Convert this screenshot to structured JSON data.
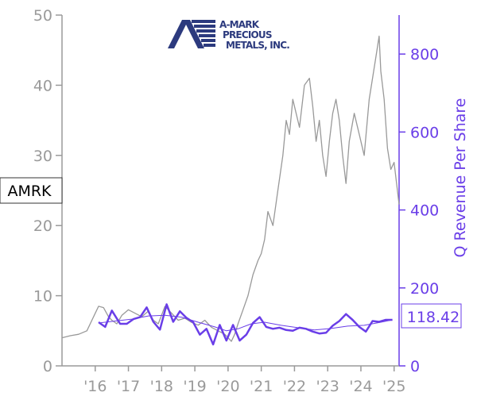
{
  "logo": {
    "line1": "A-MARK",
    "line2": "PRECIOUS",
    "line3": "METALS, INC."
  },
  "ticker_label": "AMRK",
  "last_revenue_label": "118.42",
  "colors": {
    "price": "#999999",
    "revenue": "#6a3ee8",
    "revenue_trend": "#6a3ee8",
    "left_axis": "#9a9a9a",
    "logo_blue": "#2c3a7e"
  },
  "chart_data": {
    "type": "line",
    "left_axis": {
      "ylim": [
        0,
        50
      ],
      "ticks": [
        0,
        10,
        20,
        30,
        40,
        50
      ]
    },
    "right_axis": {
      "label": "Q Revenue Per Share",
      "ylim": [
        0,
        900
      ],
      "ticks": [
        0,
        200,
        400,
        600,
        800
      ]
    },
    "x_axis": {
      "xlim": [
        2015.0,
        2025.15
      ],
      "tick_positions": [
        2016,
        2017,
        2018,
        2019,
        2020,
        2021,
        2022,
        2023,
        2024,
        2025
      ],
      "tick_labels": [
        "'16",
        "'17",
        "'18",
        "'19",
        "'20",
        "'21",
        "'22",
        "'23",
        "'24",
        "'25"
      ]
    },
    "series": [
      {
        "axis": "left",
        "x": [
          2015.0,
          2015.25,
          2015.5,
          2015.75,
          2015.9,
          2016.0,
          2016.1,
          2016.25,
          2016.4,
          2016.5,
          2016.65,
          2016.8,
          2017.0,
          2017.2,
          2017.4,
          2017.6,
          2017.75,
          2017.9,
          2018.1,
          2018.3,
          2018.5,
          2018.7,
          2018.9,
          2019.1,
          2019.3,
          2019.5,
          2019.7,
          2019.9,
          2020.0,
          2020.1,
          2020.2,
          2020.3,
          2020.45,
          2020.6,
          2020.75,
          2020.9,
          2021.0,
          2021.1,
          2021.2,
          2021.35,
          2021.5,
          2021.65,
          2021.75,
          2021.85,
          2021.95,
          2022.05,
          2022.15,
          2022.3,
          2022.45,
          2022.55,
          2022.65,
          2022.75,
          2022.85,
          2022.95,
          2023.05,
          2023.15,
          2023.25,
          2023.35,
          2023.45,
          2023.55,
          2023.65,
          2023.8,
          2023.95,
          2024.1,
          2024.25,
          2024.35,
          2024.45,
          2024.55,
          2024.6,
          2024.7,
          2024.8,
          2024.9,
          2025.0,
          2025.05,
          2025.1,
          2025.15
        ],
        "y": [
          4,
          4.3,
          4.5,
          5,
          6.5,
          7.5,
          8.5,
          8.3,
          7,
          6.5,
          6,
          7.2,
          8,
          7.5,
          7,
          7.8,
          6.5,
          6,
          8.5,
          7.5,
          6.5,
          6.8,
          6.2,
          5.8,
          6.5,
          5.5,
          5,
          4.5,
          4,
          3.5,
          4.5,
          6,
          8,
          10,
          13,
          15,
          16,
          18,
          22,
          20,
          25,
          30,
          35,
          33,
          38,
          36,
          34,
          40,
          41,
          37,
          32,
          35,
          30,
          27,
          32,
          36,
          38,
          35,
          30,
          26,
          32,
          36,
          33,
          30,
          38,
          41,
          44,
          47,
          42,
          38,
          31,
          28,
          29,
          27,
          25,
          23
        ]
      },
      {
        "axis": "right",
        "x": [
          2016.1,
          2016.3,
          2016.5,
          2016.75,
          2016.95,
          2017.15,
          2017.35,
          2017.55,
          2017.75,
          2017.95,
          2018.15,
          2018.35,
          2018.55,
          2018.75,
          2018.95,
          2019.15,
          2019.35,
          2019.55,
          2019.75,
          2019.95,
          2020.15,
          2020.35,
          2020.55,
          2020.75,
          2020.95,
          2021.15,
          2021.35,
          2021.55,
          2021.75,
          2021.95,
          2022.15,
          2022.35,
          2022.55,
          2022.75,
          2022.95,
          2023.15,
          2023.35,
          2023.55,
          2023.75,
          2023.95,
          2024.15,
          2024.35,
          2024.55,
          2024.75,
          2024.95
        ],
        "y": [
          112,
          100,
          142,
          108,
          108,
          120,
          125,
          150,
          113,
          93,
          158,
          113,
          140,
          123,
          112,
          80,
          95,
          55,
          105,
          65,
          105,
          65,
          80,
          110,
          125,
          100,
          95,
          98,
          92,
          90,
          98,
          95,
          88,
          83,
          85,
          103,
          115,
          133,
          118,
          100,
          88,
          115,
          113,
          118,
          118
        ]
      },
      {
        "axis": "right",
        "x": [
          2016.1,
          2016.6,
          2017.1,
          2017.6,
          2018.1,
          2018.6,
          2019.1,
          2019.6,
          2019.95,
          2020.3,
          2020.7,
          2021.1,
          2021.6,
          2022.1,
          2022.6,
          2023.1,
          2023.6,
          2024.1,
          2024.6,
          2024.95
        ],
        "y": [
          110,
          115,
          120,
          128,
          130,
          125,
          112,
          100,
          90,
          95,
          108,
          112,
          104,
          98,
          92,
          96,
          102,
          104,
          112,
          118
        ]
      }
    ]
  }
}
